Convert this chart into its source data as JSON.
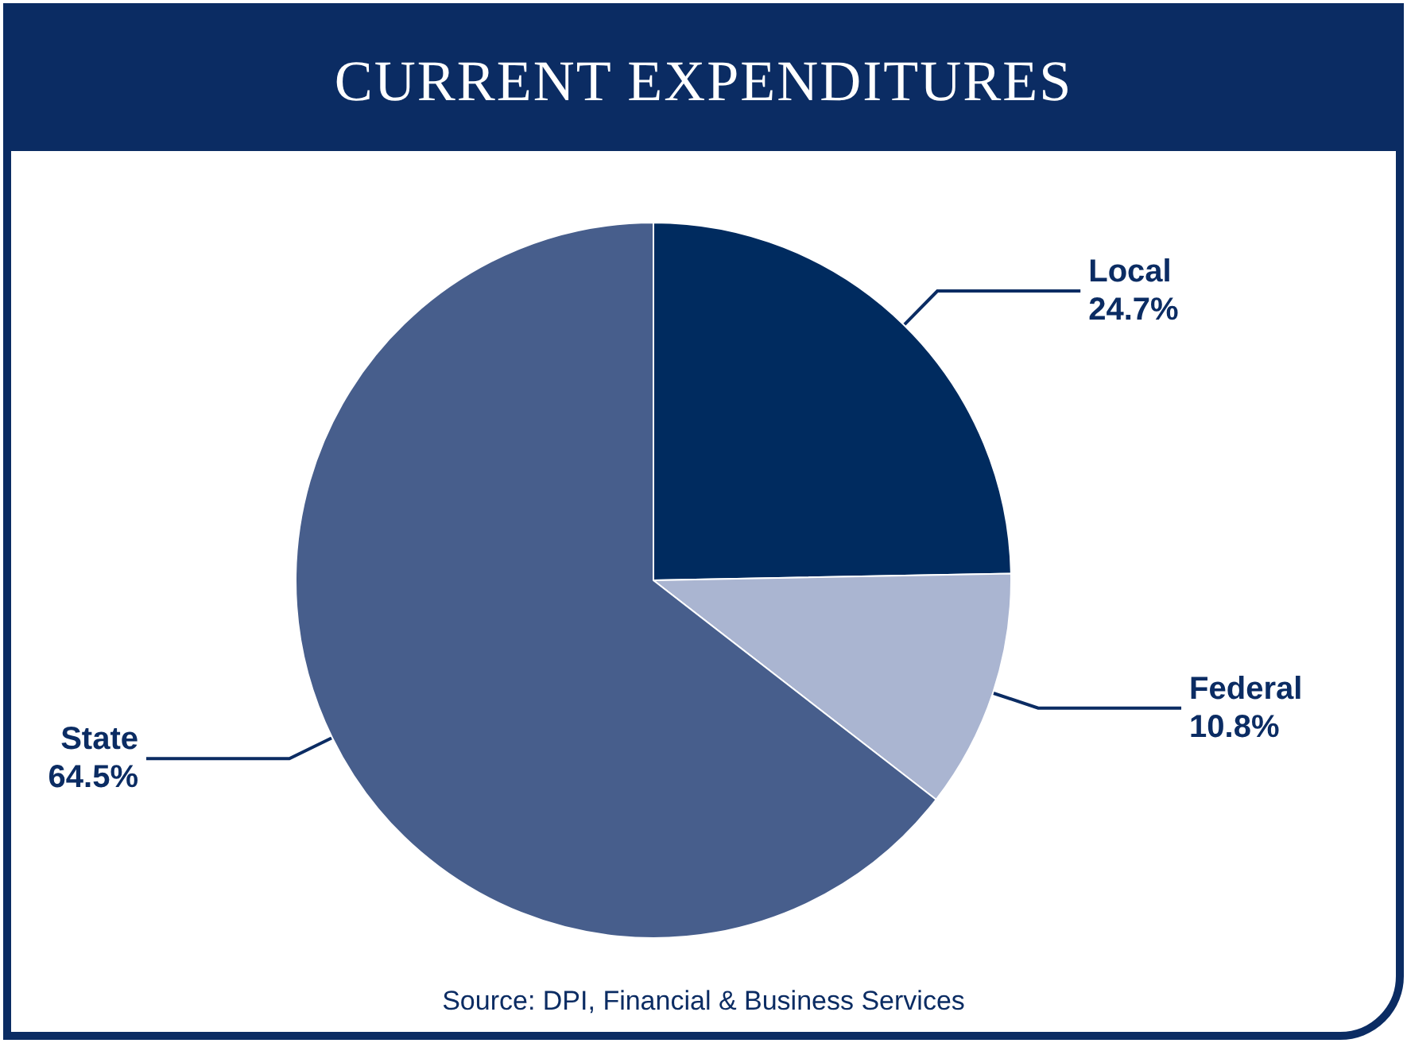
{
  "chart_data": {
    "type": "pie",
    "title": "CURRENT EXPENDITURES",
    "categories": [
      "Local",
      "Federal",
      "State"
    ],
    "values": [
      24.7,
      10.8,
      64.5
    ],
    "value_labels": [
      "24.7%",
      "10.8%",
      "64.5%"
    ],
    "colors": [
      "#002b5f",
      "#aab5d1",
      "#475e8c"
    ],
    "annotations": [
      "Source: DPI, Financial & Business Services"
    ],
    "legend": false
  }
}
